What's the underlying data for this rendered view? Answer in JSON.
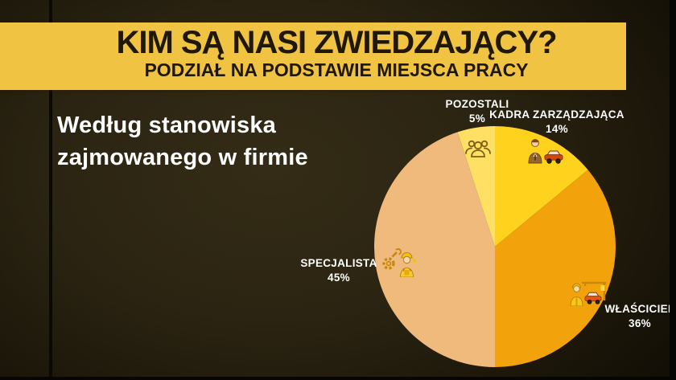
{
  "banner": {
    "title": "KIM SĄ NASI ZWIEDZAJĄCY?",
    "subtitle": "PODZIAŁ NA PODSTAWIE MIEJSCA PRACY",
    "bg_color": "#F0C343",
    "text_color": "#201807"
  },
  "intro": {
    "line1": "Według stanowiska",
    "line2": "zajmowanego w firmie"
  },
  "chart_data": {
    "type": "pie",
    "title": "Podział na podstawie miejsca pracy",
    "caption": "Według stanowiska zajmowanego w firmie",
    "total": 100,
    "direction": "clockwise",
    "start_angle_deg_from_top": 0,
    "legend": "none",
    "slices": [
      {
        "id": "kadra-zarzadzajaca",
        "name": "KADRA ZARZĄDZAJĄCA",
        "value": 14,
        "pct": "14%",
        "color": "#FFD21E",
        "icon": "manager-car-icon"
      },
      {
        "id": "wlasciciel",
        "name": "WŁAŚCICIEL",
        "value": 36,
        "pct": "36%",
        "color": "#F2A30B",
        "icon": "owner-garage-icon"
      },
      {
        "id": "specjalista",
        "name": "SPECJALISTA",
        "value": 45,
        "pct": "45%",
        "color": "#F0BA7C",
        "icon": "specialist-worker-icon"
      },
      {
        "id": "pozostali",
        "name": "POZOSTALI",
        "value": 5,
        "pct": "5%",
        "color": "#FFE065",
        "icon": "people-group-icon"
      }
    ]
  }
}
